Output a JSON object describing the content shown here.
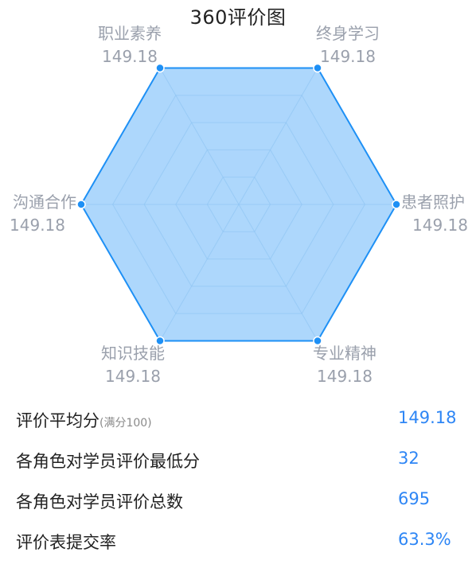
{
  "chart_data": {
    "type": "radar",
    "title": "360评价图",
    "indicators": [
      "终身学习",
      "患者照护",
      "专业精神",
      "知识技能",
      "沟通合作",
      "职业素养"
    ],
    "values": [
      149.18,
      149.18,
      149.18,
      149.18,
      149.18,
      149.18
    ],
    "value_labels": [
      "149.18",
      "149.18",
      "149.18",
      "149.18",
      "149.18",
      "149.18"
    ],
    "max": 149.18,
    "grid_levels": 5,
    "colors": {
      "fill": "#9fd0fb",
      "stroke": "#1e90f5",
      "point": "#1e90f5",
      "grid": "#e3e7ee",
      "label": "#9aa0ac"
    }
  },
  "stats": [
    {
      "label": "评价平均分",
      "note": "(满分100)",
      "value": "149.18"
    },
    {
      "label": "各角色对学员评价最低分",
      "note": "",
      "value": "32"
    },
    {
      "label": "各角色对学员评价总数",
      "note": "",
      "value": "695"
    },
    {
      "label": "评价表提交率",
      "note": "",
      "value": "63.3%"
    }
  ]
}
